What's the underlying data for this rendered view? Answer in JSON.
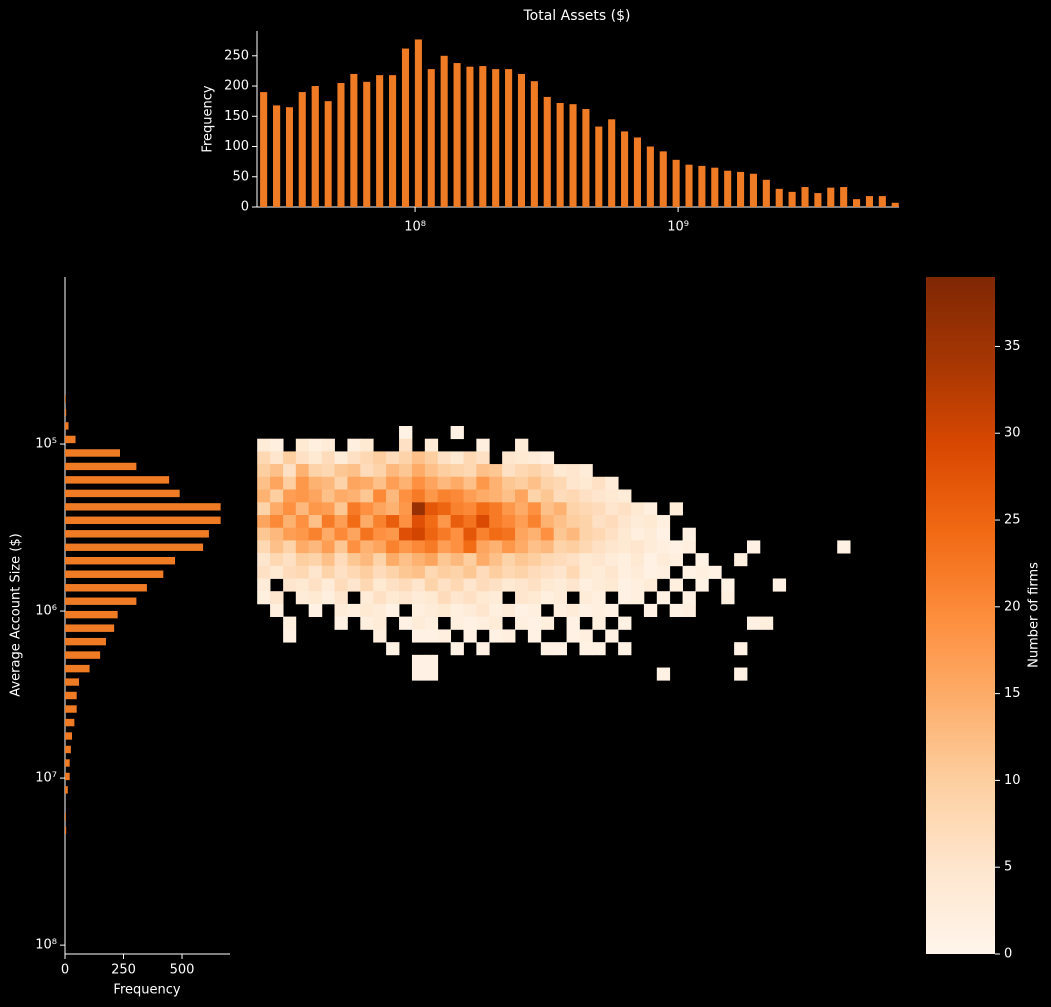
{
  "chart_data": [
    {
      "type": "histogram",
      "title": "Total Assets ($)",
      "ylabel": "Frequency",
      "color": "#ef7b25",
      "xscale": "log",
      "bins": [
        25100000,
        28100000,
        31500000,
        35200000,
        39400000,
        44200000,
        49400000,
        55300000,
        61900000,
        69300000,
        77600000,
        86900000,
        97300000,
        108900000,
        121900000,
        136500000,
        152800000,
        171000000,
        191400000,
        214300000,
        239900000,
        268500000,
        300600000,
        336500000,
        376700000,
        421700000,
        472100000,
        528400000,
        591600000,
        662200000,
        741300000,
        829900000,
        929000000,
        1040000000,
        1164000000,
        1303000000,
        1459000000,
        1633000000,
        1828000000,
        2046000000,
        2291000000,
        2564000000,
        2871000000,
        3214000000,
        3597000000,
        4027000000,
        4508000000,
        5047000000,
        5649000000,
        6324000000,
        7079000000
      ],
      "values": [
        190,
        168,
        165,
        190,
        200,
        175,
        205,
        220,
        207,
        218,
        218,
        262,
        277,
        228,
        250,
        238,
        232,
        233,
        228,
        228,
        220,
        208,
        182,
        172,
        170,
        162,
        133,
        145,
        125,
        115,
        100,
        92,
        78,
        70,
        68,
        65,
        60,
        58,
        55,
        45,
        30,
        25,
        33,
        23,
        32,
        33,
        13,
        18,
        18,
        7
      ],
      "xlim": [
        25060000,
        7100000000
      ],
      "xticks": [
        {
          "value": 100000000,
          "label": "10⁸"
        },
        {
          "value": 1000000000,
          "label": "10⁹"
        }
      ],
      "ylim": [
        0,
        291
      ],
      "yticks": [
        0,
        50,
        100,
        150,
        200,
        250
      ]
    },
    {
      "type": "heatmap",
      "xscale": "log",
      "yscale": "log",
      "xbins": [
        25100000,
        28100000,
        31500000,
        35200000,
        39400000,
        44200000,
        49400000,
        55300000,
        61900000,
        69300000,
        77600000,
        86900000,
        97300000,
        108900000,
        121900000,
        136500000,
        152800000,
        171000000,
        191400000,
        214300000,
        239900000,
        268500000,
        300600000,
        336500000,
        376700000,
        421700000,
        472100000,
        528400000,
        591600000,
        662200000,
        741300000,
        829900000,
        929000000,
        1040000000,
        1164000000,
        1303000000,
        1459000000,
        1633000000,
        1828000000,
        2046000000,
        2291000000,
        2564000000,
        2871000000,
        3214000000,
        3597000000,
        4027000000,
        4508000000,
        5047000000
      ],
      "ybins": [
        78000,
        92900,
        110700,
        131800,
        157000,
        187100,
        223400,
        266100,
        317000,
        377600,
        449800,
        535800,
        638300,
        760300,
        905700,
        1079000,
        1288000,
        1535000,
        1828000,
        2178000,
        2594000
      ],
      "z": [
        [
          0,
          0,
          0,
          0,
          0,
          0,
          0,
          0,
          0,
          0,
          0,
          1,
          0,
          0,
          0,
          1,
          0,
          0,
          0,
          0,
          0,
          0,
          0,
          0,
          0,
          0,
          0,
          0,
          0,
          0,
          0,
          0,
          0,
          0,
          0,
          0,
          0,
          0,
          0,
          0,
          0,
          0,
          0,
          0,
          0,
          0,
          0
        ],
        [
          3,
          2,
          0,
          4,
          2,
          3,
          0,
          2,
          4,
          0,
          0,
          6,
          0,
          3,
          0,
          0,
          0,
          2,
          0,
          0,
          3,
          0,
          0,
          0,
          0,
          0,
          0,
          0,
          0,
          0,
          0,
          0,
          0,
          0,
          0,
          0,
          0,
          0,
          0,
          0,
          0,
          0,
          0,
          0,
          0,
          0,
          0
        ],
        [
          8,
          5,
          10,
          6,
          4,
          7,
          3,
          6,
          8,
          10,
          7,
          9,
          12,
          10,
          6,
          4,
          8,
          6,
          0,
          5,
          4,
          3,
          2,
          0,
          0,
          0,
          0,
          0,
          0,
          0,
          0,
          0,
          0,
          0,
          0,
          0,
          0,
          0,
          0,
          0,
          0,
          0,
          0,
          0,
          0,
          0,
          0
        ],
        [
          10,
          12,
          6,
          14,
          9,
          8,
          11,
          12,
          7,
          9,
          13,
          11,
          15,
          12,
          10,
          9,
          8,
          12,
          11,
          6,
          8,
          9,
          7,
          4,
          5,
          3,
          0,
          0,
          0,
          0,
          0,
          0,
          0,
          0,
          0,
          0,
          0,
          0,
          0,
          0,
          0,
          0,
          0,
          0,
          0,
          0,
          0
        ],
        [
          12,
          16,
          10,
          18,
          14,
          13,
          9,
          16,
          15,
          12,
          17,
          14,
          19,
          16,
          13,
          15,
          12,
          18,
          14,
          11,
          10,
          12,
          9,
          8,
          5,
          4,
          6,
          3,
          0,
          0,
          0,
          0,
          0,
          0,
          0,
          0,
          0,
          0,
          0,
          0,
          0,
          0,
          0,
          0,
          0,
          0,
          0
        ],
        [
          14,
          10,
          17,
          18,
          16,
          12,
          15,
          14,
          11,
          20,
          13,
          19,
          22,
          18,
          21,
          20,
          17,
          15,
          14,
          12,
          16,
          9,
          11,
          7,
          8,
          6,
          5,
          4,
          3,
          0,
          0,
          0,
          0,
          0,
          0,
          0,
          0,
          0,
          0,
          0,
          0,
          0,
          0,
          0,
          0,
          0,
          0
        ],
        [
          9,
          15,
          19,
          13,
          18,
          17,
          11,
          22,
          19,
          16,
          14,
          18,
          36,
          27,
          25,
          21,
          20,
          24,
          22,
          18,
          15,
          19,
          12,
          14,
          9,
          8,
          7,
          5,
          6,
          4,
          2,
          0,
          3,
          0,
          0,
          0,
          0,
          0,
          0,
          0,
          0,
          0,
          0,
          0,
          0,
          0,
          0
        ],
        [
          16,
          20,
          14,
          19,
          12,
          22,
          17,
          24,
          15,
          21,
          26,
          19,
          28,
          24,
          18,
          26,
          23,
          29,
          22,
          20,
          17,
          21,
          14,
          12,
          10,
          9,
          6,
          7,
          5,
          3,
          4,
          2,
          0,
          0,
          0,
          0,
          0,
          0,
          0,
          0,
          0,
          0,
          0,
          0,
          0,
          0,
          0
        ],
        [
          11,
          13,
          17,
          18,
          21,
          15,
          20,
          16,
          23,
          19,
          18,
          28,
          30,
          25,
          22,
          19,
          27,
          21,
          24,
          23,
          16,
          14,
          19,
          11,
          13,
          9,
          8,
          6,
          4,
          2,
          3,
          1,
          0,
          1,
          0,
          0,
          0,
          0,
          0,
          0,
          0,
          0,
          0,
          0,
          0,
          0,
          0
        ],
        [
          8,
          12,
          9,
          15,
          13,
          17,
          11,
          19,
          14,
          16,
          21,
          18,
          20,
          22,
          17,
          19,
          24,
          16,
          14,
          18,
          15,
          12,
          13,
          9,
          10,
          8,
          6,
          5,
          4,
          5,
          3,
          2,
          1,
          2,
          0,
          0,
          0,
          0,
          1,
          0,
          0,
          0,
          0,
          0,
          0,
          1,
          0
        ],
        [
          5,
          8,
          6,
          10,
          9,
          12,
          7,
          11,
          13,
          9,
          15,
          12,
          14,
          16,
          11,
          13,
          10,
          15,
          12,
          9,
          11,
          10,
          8,
          7,
          6,
          4,
          5,
          3,
          2,
          4,
          1,
          3,
          2,
          0,
          1,
          0,
          0,
          2,
          0,
          0,
          0,
          0,
          0,
          0,
          0,
          0,
          0
        ],
        [
          6,
          4,
          7,
          8,
          5,
          9,
          6,
          8,
          10,
          7,
          9,
          11,
          12,
          8,
          10,
          9,
          11,
          7,
          10,
          8,
          9,
          7,
          6,
          5,
          8,
          4,
          3,
          5,
          2,
          3,
          1,
          2,
          0,
          1,
          2,
          1,
          0,
          0,
          0,
          0,
          0,
          0,
          0,
          0,
          0,
          0,
          0
        ],
        [
          3,
          0,
          5,
          4,
          6,
          3,
          7,
          5,
          8,
          4,
          6,
          7,
          5,
          9,
          6,
          8,
          5,
          7,
          6,
          4,
          5,
          6,
          4,
          3,
          5,
          2,
          3,
          4,
          1,
          2,
          3,
          0,
          2,
          0,
          1,
          0,
          1,
          0,
          0,
          0,
          1,
          0,
          0,
          0,
          0,
          0,
          0
        ],
        [
          2,
          5,
          0,
          3,
          4,
          2,
          5,
          0,
          3,
          6,
          4,
          5,
          3,
          4,
          7,
          5,
          6,
          4,
          3,
          0,
          5,
          4,
          2,
          3,
          0,
          3,
          2,
          0,
          1,
          2,
          0,
          1,
          0,
          1,
          0,
          0,
          2,
          0,
          0,
          0,
          0,
          0,
          0,
          0,
          0,
          0,
          0
        ],
        [
          0,
          2,
          0,
          0,
          1,
          0,
          3,
          2,
          4,
          3,
          1,
          0,
          2,
          3,
          4,
          2,
          3,
          5,
          2,
          3,
          1,
          2,
          0,
          2,
          3,
          1,
          2,
          1,
          0,
          0,
          1,
          0,
          1,
          2,
          0,
          0,
          0,
          0,
          0,
          0,
          0,
          0,
          0,
          0,
          0,
          0,
          0
        ],
        [
          0,
          0,
          2,
          0,
          0,
          0,
          1,
          0,
          2,
          3,
          0,
          1,
          3,
          2,
          0,
          2,
          1,
          2,
          3,
          0,
          2,
          1,
          2,
          0,
          1,
          0,
          2,
          0,
          1,
          0,
          0,
          0,
          0,
          0,
          0,
          0,
          0,
          0,
          1,
          2,
          0,
          0,
          0,
          0,
          0,
          0,
          0
        ],
        [
          0,
          0,
          1,
          0,
          0,
          0,
          0,
          0,
          0,
          2,
          0,
          0,
          1,
          1,
          2,
          0,
          1,
          0,
          1,
          2,
          0,
          1,
          0,
          0,
          1,
          2,
          0,
          1,
          0,
          0,
          0,
          0,
          0,
          0,
          0,
          0,
          0,
          0,
          0,
          0,
          0,
          0,
          0,
          0,
          0,
          0,
          0
        ],
        [
          0,
          0,
          0,
          0,
          0,
          0,
          0,
          0,
          0,
          0,
          1,
          0,
          0,
          0,
          0,
          1,
          0,
          1,
          0,
          0,
          0,
          0,
          1,
          1,
          0,
          1,
          1,
          0,
          1,
          0,
          0,
          0,
          0,
          0,
          0,
          0,
          0,
          1,
          0,
          0,
          0,
          0,
          0,
          0,
          0,
          0,
          0
        ],
        [
          0,
          0,
          0,
          0,
          0,
          0,
          0,
          0,
          0,
          0,
          0,
          0,
          1,
          1,
          0,
          0,
          0,
          0,
          0,
          0,
          0,
          0,
          0,
          0,
          0,
          0,
          0,
          0,
          0,
          0,
          0,
          0,
          0,
          0,
          0,
          0,
          0,
          0,
          0,
          0,
          0,
          0,
          0,
          0,
          0,
          0,
          0
        ],
        [
          0,
          0,
          0,
          0,
          0,
          0,
          0,
          0,
          0,
          0,
          0,
          0,
          1,
          1,
          0,
          0,
          0,
          0,
          0,
          0,
          0,
          0,
          0,
          0,
          0,
          0,
          0,
          0,
          0,
          0,
          0,
          1,
          0,
          0,
          0,
          0,
          0,
          1,
          0,
          0,
          0,
          0,
          0,
          0,
          0,
          0,
          0
        ]
      ],
      "xlim": [
        25060000,
        7100000000
      ],
      "ylim": [
        10000,
        113000000
      ],
      "colormap": [
        "#fff5eb",
        "#fee6ce",
        "#fdd0a2",
        "#fdae6b",
        "#fd8d3c",
        "#f16913",
        "#d94801",
        "#a63603",
        "#7f2704"
      ],
      "clim": [
        0,
        39
      ],
      "colorbar_label": "Number of firms",
      "colorbar_ticks": [
        0,
        5,
        10,
        15,
        20,
        25,
        30,
        35
      ]
    },
    {
      "type": "histogram",
      "orientation": "horizontal",
      "xlabel": "Frequency",
      "ylabel": "Average Account Size ($)",
      "color": "#ef7b25",
      "yscale": "log",
      "bins": [
        49000,
        59000,
        71000,
        85500,
        103000,
        124200,
        149300,
        179900,
        216800,
        260600,
        314100,
        378400,
        455000,
        548300,
        660700,
        796200,
        957200,
        1153000,
        1390000,
        1671000,
        2014000,
        2427000,
        2917000,
        3516000,
        4236000,
        5105000,
        6138000,
        7396000,
        8913000,
        10720000,
        12910000,
        15560000,
        18710000,
        22540000
      ],
      "values": [
        3,
        5,
        15,
        45,
        235,
        305,
        445,
        490,
        665,
        665,
        615,
        590,
        470,
        420,
        350,
        305,
        225,
        210,
        175,
        150,
        105,
        60,
        50,
        50,
        40,
        30,
        25,
        20,
        20,
        12,
        0,
        4,
        5
      ],
      "xlim": [
        0,
        705
      ],
      "xticks": [
        0,
        250,
        500
      ],
      "ylim": [
        10000,
        113000000
      ],
      "yticks": [
        {
          "value": 100000,
          "label": "10⁵"
        },
        {
          "value": 1000000,
          "label": "10⁶"
        },
        {
          "value": 10000000,
          "label": "10⁷"
        },
        {
          "value": 100000000,
          "label": "10⁸"
        }
      ]
    }
  ]
}
